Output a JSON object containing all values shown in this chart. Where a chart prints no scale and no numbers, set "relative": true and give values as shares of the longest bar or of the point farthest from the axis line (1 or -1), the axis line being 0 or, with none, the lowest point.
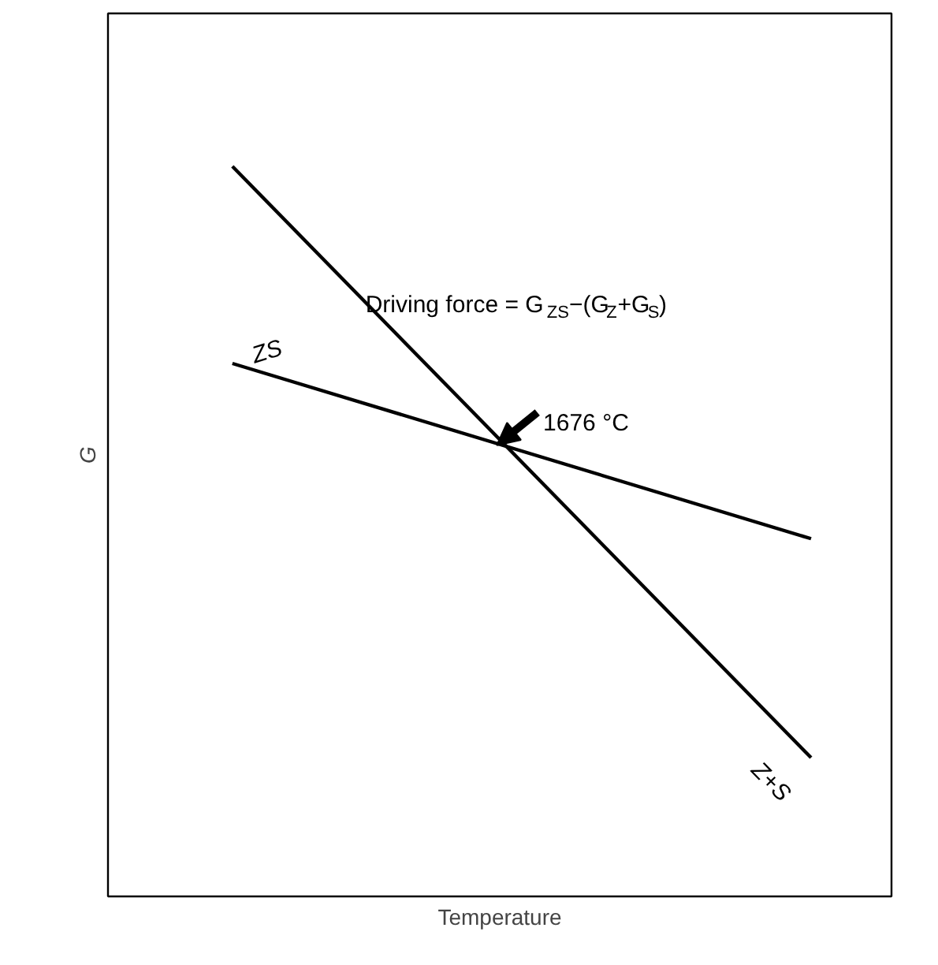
{
  "chart_data": {
    "type": "line",
    "relative": true,
    "xlabel": "Temperature",
    "ylabel": "G",
    "categories": [
      null,
      null
    ],
    "series": [
      {
        "name": "ZS",
        "color": "#000000",
        "values": [
          0.73,
          0.49
        ]
      },
      {
        "name": "Z+S",
        "color": "#000000",
        "values": [
          1,
          0.19
        ]
      }
    ],
    "annotations": [
      "Driving force = G$_{ZS}$−(G$_{Z}$+G$_{S}$)",
      "1676 °C"
    ],
    "tick_labels": false,
    "marker": "none",
    "line_style": "solid"
  }
}
